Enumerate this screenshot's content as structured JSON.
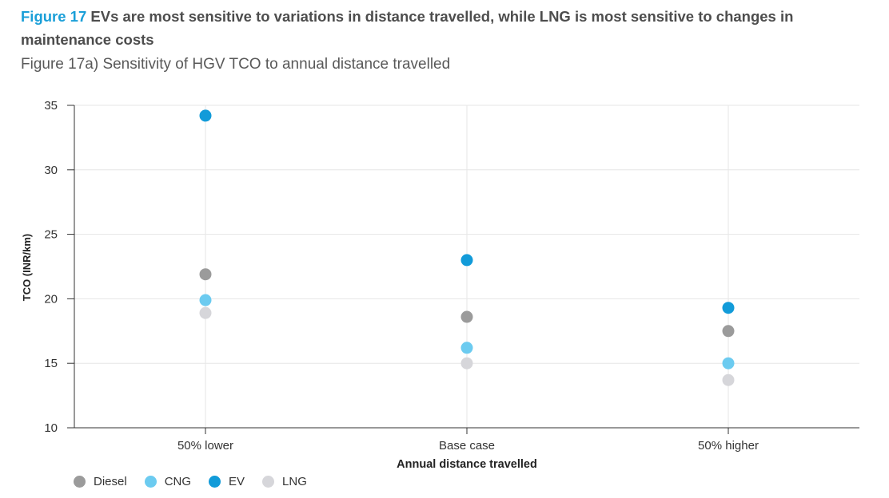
{
  "header": {
    "figure_number": "Figure 17",
    "figure_title": " EVs are most sensitive to variations in distance travelled, while LNG is most sensitive to changes in maintenance costs",
    "subtitle": "Figure 17a) Sensitivity of HGV TCO to annual distance travelled"
  },
  "chart_data": {
    "type": "scatter",
    "categories": [
      "50% lower",
      "Base case",
      "50% higher"
    ],
    "xlabel": "Annual distance travelled",
    "ylabel": "TCO (INR/km)",
    "ylim": [
      10,
      35
    ],
    "yticks": [
      10,
      15,
      20,
      25,
      30,
      35
    ],
    "grid": true,
    "legend_position": "bottom-left",
    "series": [
      {
        "name": "Diesel",
        "color": "#9b9b9b",
        "values": [
          21.9,
          18.6,
          17.5
        ]
      },
      {
        "name": "CNG",
        "color": "#6ccbf0",
        "values": [
          19.9,
          16.2,
          15.0
        ]
      },
      {
        "name": "EV",
        "color": "#129bd9",
        "values": [
          34.2,
          23.0,
          19.3
        ]
      },
      {
        "name": "LNG",
        "color": "#d6d6da",
        "values": [
          18.9,
          15.0,
          13.7
        ]
      }
    ]
  }
}
